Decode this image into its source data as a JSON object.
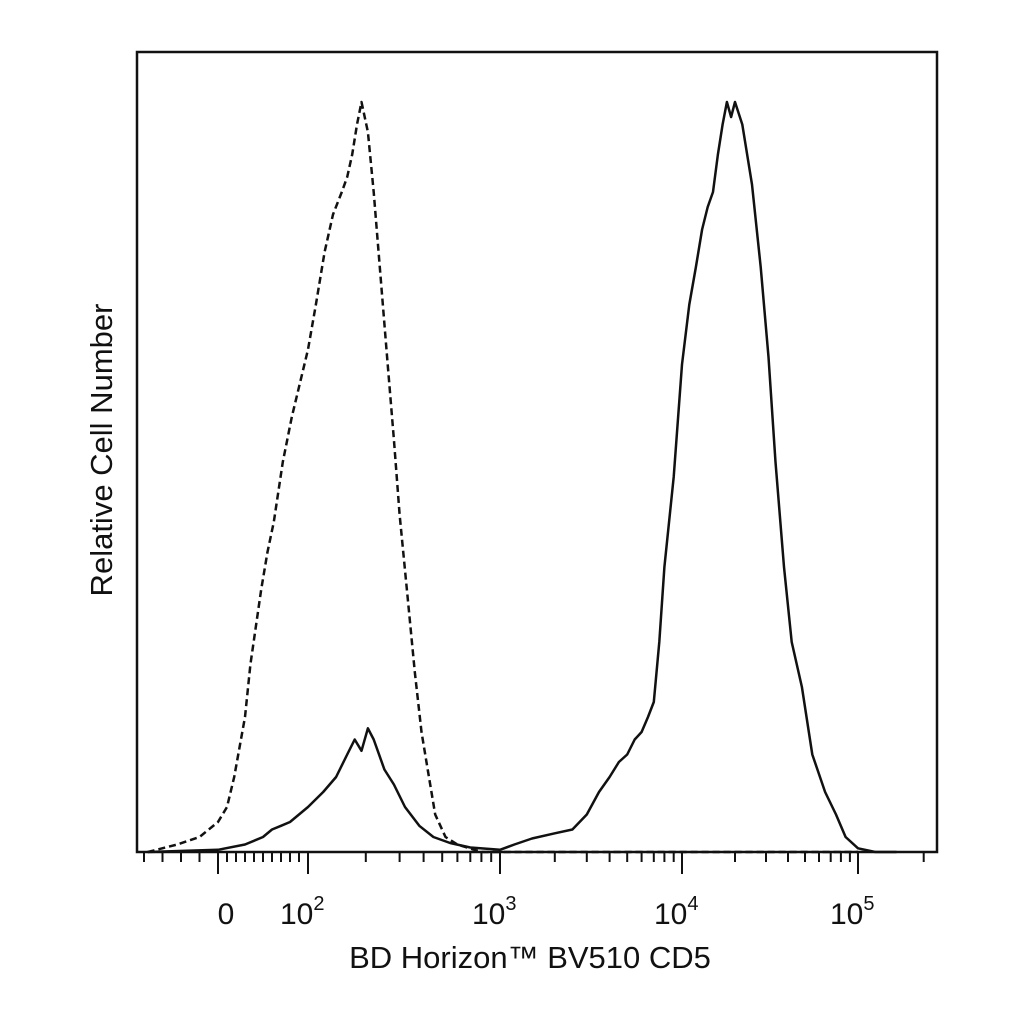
{
  "chart_data": {
    "type": "line",
    "xlabel": "BD Horizon™ BV510 CD5",
    "ylabel": "Relative Cell Number",
    "x_scale": "biexponential",
    "xlim": [
      -40,
      230000
    ],
    "ylim": [
      0,
      100
    ],
    "grid": false,
    "legend": "none",
    "x_tick_labels": [
      {
        "value": 0,
        "base": "0",
        "exp": ""
      },
      {
        "value": 100,
        "base": "10",
        "exp": "2"
      },
      {
        "value": 1000,
        "base": "10",
        "exp": "3"
      },
      {
        "value": 10000,
        "base": "10",
        "exp": "4"
      },
      {
        "value": 100000,
        "base": "10",
        "exp": "5"
      }
    ],
    "series": [
      {
        "line_style": "dashed",
        "color": "#111111",
        "points": [
          [
            -38,
            0
          ],
          [
            -22,
            1
          ],
          [
            -10,
            2
          ],
          [
            0,
            4
          ],
          [
            10,
            6
          ],
          [
            18,
            10
          ],
          [
            24,
            14
          ],
          [
            30,
            18
          ],
          [
            36,
            25
          ],
          [
            42,
            30
          ],
          [
            48,
            35
          ],
          [
            55,
            40
          ],
          [
            62,
            44
          ],
          [
            72,
            52
          ],
          [
            82,
            58
          ],
          [
            90,
            62
          ],
          [
            100,
            67
          ],
          [
            110,
            73
          ],
          [
            122,
            80
          ],
          [
            135,
            85
          ],
          [
            150,
            88
          ],
          [
            160,
            90
          ],
          [
            170,
            93
          ],
          [
            180,
            97
          ],
          [
            190,
            100
          ],
          [
            205,
            96
          ],
          [
            220,
            88
          ],
          [
            240,
            76
          ],
          [
            260,
            65
          ],
          [
            280,
            55
          ],
          [
            300,
            45
          ],
          [
            330,
            34
          ],
          [
            360,
            24
          ],
          [
            390,
            16
          ],
          [
            420,
            11
          ],
          [
            460,
            5
          ],
          [
            520,
            2
          ],
          [
            600,
            1
          ],
          [
            800,
            0
          ],
          [
            2000,
            0
          ],
          [
            100000,
            0
          ]
        ]
      },
      {
        "line_style": "solid",
        "color": "#111111",
        "points": [
          [
            -38,
            0
          ],
          [
            0,
            0.3
          ],
          [
            30,
            1
          ],
          [
            50,
            2
          ],
          [
            60,
            3
          ],
          [
            70,
            3.5
          ],
          [
            80,
            4
          ],
          [
            100,
            6
          ],
          [
            120,
            8
          ],
          [
            140,
            10
          ],
          [
            160,
            13
          ],
          [
            175,
            15
          ],
          [
            190,
            13.5
          ],
          [
            205,
            16.5
          ],
          [
            220,
            15
          ],
          [
            250,
            11
          ],
          [
            280,
            9
          ],
          [
            320,
            6
          ],
          [
            380,
            3.5
          ],
          [
            450,
            2
          ],
          [
            550,
            1.2
          ],
          [
            700,
            0.6
          ],
          [
            1000,
            0.3
          ],
          [
            1200,
            1
          ],
          [
            1500,
            1.8
          ],
          [
            2000,
            2.5
          ],
          [
            2500,
            3
          ],
          [
            3000,
            5
          ],
          [
            3500,
            8
          ],
          [
            4000,
            10
          ],
          [
            4500,
            12
          ],
          [
            5000,
            13
          ],
          [
            5500,
            15
          ],
          [
            6000,
            16
          ],
          [
            6500,
            18
          ],
          [
            7000,
            20
          ],
          [
            7500,
            28
          ],
          [
            8000,
            38
          ],
          [
            9000,
            50
          ],
          [
            10000,
            65
          ],
          [
            11000,
            73
          ],
          [
            12000,
            78
          ],
          [
            13000,
            83
          ],
          [
            14000,
            86
          ],
          [
            15000,
            88
          ],
          [
            16000,
            93
          ],
          [
            17000,
            97
          ],
          [
            18000,
            100
          ],
          [
            19000,
            98
          ],
          [
            20000,
            100
          ],
          [
            22000,
            97
          ],
          [
            25000,
            89
          ],
          [
            28000,
            78
          ],
          [
            31000,
            66
          ],
          [
            34000,
            52
          ],
          [
            38000,
            38
          ],
          [
            42000,
            28
          ],
          [
            48000,
            22
          ],
          [
            55000,
            13
          ],
          [
            65000,
            8
          ],
          [
            75000,
            5
          ],
          [
            85000,
            2
          ],
          [
            100000,
            0.5
          ],
          [
            120000,
            0
          ],
          [
            150000,
            0
          ]
        ]
      }
    ]
  }
}
